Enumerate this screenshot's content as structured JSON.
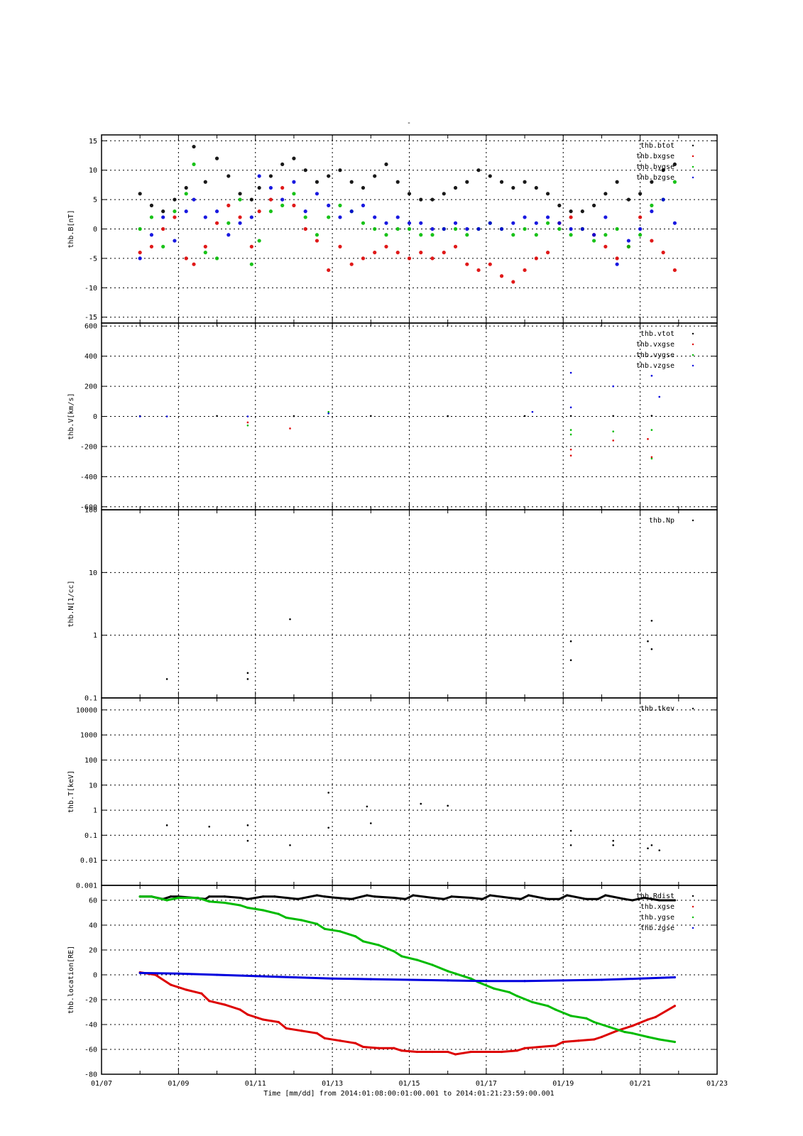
{
  "figure": {
    "title": "-",
    "xlabel": "Time [mm/dd]  from 2014:01:08:00:01:00.001  to  2014:01:21:23:59:00.001"
  },
  "chart_data": [
    {
      "type": "scatter",
      "ylabel": "thb.B[nT]",
      "yscale": "linear",
      "ylim": [
        -16,
        16
      ],
      "yticks": [
        -15,
        -10,
        -5,
        0,
        5,
        10,
        15
      ],
      "ytick_labels": [
        "-15",
        "-10",
        "-5",
        "0",
        "5",
        "10",
        "15"
      ],
      "xlim": [
        "01/07",
        "01/23"
      ],
      "xticks": [
        "01/07",
        "01/09",
        "01/11",
        "01/13",
        "01/15",
        "01/17",
        "01/19",
        "01/21",
        "01/23"
      ],
      "grid": true,
      "legend_position": "top-right",
      "series": [
        {
          "name": "thb.btot",
          "color": "#000000",
          "x": [
            8.0,
            8.3,
            8.6,
            8.9,
            9.2,
            9.4,
            9.7,
            10.0,
            10.3,
            10.6,
            10.9,
            11.1,
            11.4,
            11.7,
            12.0,
            12.3,
            12.6,
            12.9,
            13.2,
            13.5,
            13.8,
            14.1,
            14.4,
            14.7,
            15.0,
            15.3,
            15.6,
            15.9,
            16.2,
            16.5,
            16.8,
            17.1,
            17.4,
            17.7,
            18.0,
            18.3,
            18.6,
            18.9,
            19.2,
            19.5,
            19.8,
            20.1,
            20.4,
            20.7,
            21.0,
            21.3,
            21.6,
            21.9
          ],
          "y": [
            6,
            4,
            3,
            5,
            7,
            14,
            8,
            12,
            9,
            6,
            5,
            7,
            9,
            11,
            12,
            10,
            8,
            9,
            10,
            8,
            7,
            9,
            11,
            8,
            6,
            5,
            5,
            6,
            7,
            8,
            10,
            9,
            8,
            7,
            8,
            7,
            6,
            4,
            3,
            3,
            4,
            6,
            8,
            5,
            6,
            8,
            10,
            11
          ]
        },
        {
          "name": "thb.bxgse",
          "color": "#dd0000",
          "x": [
            8.0,
            8.3,
            8.6,
            8.9,
            9.2,
            9.4,
            9.7,
            10.0,
            10.3,
            10.6,
            10.9,
            11.1,
            11.4,
            11.7,
            12.0,
            12.3,
            12.6,
            12.9,
            13.2,
            13.5,
            13.8,
            14.1,
            14.4,
            14.7,
            15.0,
            15.3,
            15.6,
            15.9,
            16.2,
            16.5,
            16.8,
            17.1,
            17.4,
            17.7,
            18.0,
            18.3,
            18.6,
            18.9,
            19.2,
            19.5,
            19.8,
            20.1,
            20.4,
            20.7,
            21.0,
            21.3,
            21.6,
            21.9
          ],
          "y": [
            -4,
            -3,
            0,
            2,
            -5,
            -6,
            -3,
            1,
            4,
            2,
            -3,
            3,
            5,
            7,
            4,
            0,
            -2,
            -7,
            -3,
            -6,
            -5,
            -4,
            -3,
            -4,
            -5,
            -4,
            -5,
            -4,
            -3,
            -6,
            -7,
            -6,
            -8,
            -9,
            -7,
            -5,
            -4,
            1,
            2,
            0,
            -1,
            -3,
            -5,
            -3,
            2,
            -2,
            -4,
            -7
          ]
        },
        {
          "name": "thb.bygse",
          "color": "#00bb00",
          "x": [
            8.0,
            8.3,
            8.6,
            8.9,
            9.2,
            9.4,
            9.7,
            10.0,
            10.3,
            10.6,
            10.9,
            11.1,
            11.4,
            11.7,
            12.0,
            12.3,
            12.6,
            12.9,
            13.2,
            13.5,
            13.8,
            14.1,
            14.4,
            14.7,
            15.0,
            15.3,
            15.6,
            15.9,
            16.2,
            16.5,
            16.8,
            17.1,
            17.4,
            17.7,
            18.0,
            18.3,
            18.6,
            18.9,
            19.2,
            19.5,
            19.8,
            20.1,
            20.4,
            20.7,
            21.0,
            21.3,
            21.6,
            21.9
          ],
          "y": [
            0,
            2,
            -3,
            3,
            6,
            11,
            -4,
            -5,
            1,
            5,
            -6,
            -2,
            3,
            4,
            6,
            2,
            -1,
            2,
            4,
            3,
            1,
            0,
            -1,
            0,
            0,
            -1,
            -1,
            0,
            0,
            -1,
            0,
            1,
            0,
            -1,
            0,
            -1,
            1,
            0,
            -1,
            0,
            -2,
            -1,
            0,
            -3,
            -1,
            4,
            5,
            8
          ]
        },
        {
          "name": "thb.bzgse",
          "color": "#0000dd",
          "x": [
            8.0,
            8.3,
            8.6,
            8.9,
            9.2,
            9.4,
            9.7,
            10.0,
            10.3,
            10.6,
            10.9,
            11.1,
            11.4,
            11.7,
            12.0,
            12.3,
            12.6,
            12.9,
            13.2,
            13.5,
            13.8,
            14.1,
            14.4,
            14.7,
            15.0,
            15.3,
            15.6,
            15.9,
            16.2,
            16.5,
            16.8,
            17.1,
            17.4,
            17.7,
            18.0,
            18.3,
            18.6,
            18.9,
            19.2,
            19.5,
            19.8,
            20.1,
            20.4,
            20.7,
            21.0,
            21.3,
            21.6,
            21.9
          ],
          "y": [
            -5,
            -1,
            2,
            -2,
            3,
            5,
            2,
            3,
            -1,
            1,
            2,
            9,
            7,
            5,
            8,
            3,
            6,
            4,
            2,
            3,
            4,
            2,
            1,
            2,
            1,
            1,
            0,
            0,
            1,
            0,
            0,
            1,
            0,
            1,
            2,
            1,
            2,
            1,
            0,
            0,
            -1,
            2,
            -6,
            -2,
            0,
            3,
            5,
            1
          ]
        }
      ]
    },
    {
      "type": "scatter",
      "ylabel": "thb.V[km/s]",
      "yscale": "linear",
      "ylim": [
        -620,
        620
      ],
      "yticks": [
        -600,
        -400,
        -200,
        0,
        200,
        400,
        600
      ],
      "ytick_labels": [
        "-600",
        "-400",
        "-200",
        "0",
        "200",
        "400",
        "600"
      ],
      "xlim": [
        "01/07",
        "01/23"
      ],
      "grid": true,
      "legend_position": "top-right",
      "series": [
        {
          "name": "thb.vtot",
          "color": "#000000",
          "x": [
            8.0,
            10.0,
            12.0,
            14.0,
            16.0,
            18.0,
            19.2,
            20.3,
            21.3
          ],
          "y": [
            2,
            3,
            2,
            3,
            2,
            3,
            3,
            3,
            4
          ]
        },
        {
          "name": "thb.vxgse",
          "color": "#dd0000",
          "x": [
            10.8,
            11.9,
            19.2,
            19.2,
            20.3,
            21.2,
            21.3
          ],
          "y": [
            -40,
            -80,
            -220,
            -260,
            -160,
            -150,
            -270
          ]
        },
        {
          "name": "thb.vygse",
          "color": "#00bb00",
          "x": [
            10.8,
            12.9,
            19.2,
            19.2,
            20.3,
            21.3,
            21.3
          ],
          "y": [
            -60,
            30,
            -90,
            -120,
            -100,
            -90,
            -280
          ]
        },
        {
          "name": "thb.vzgse",
          "color": "#0000dd",
          "x": [
            8.0,
            8.7,
            10.8,
            12.9,
            18.2,
            19.2,
            19.2,
            20.3,
            21.3,
            21.5
          ],
          "y": [
            0,
            0,
            0,
            20,
            30,
            290,
            60,
            200,
            270,
            130
          ]
        }
      ]
    },
    {
      "type": "scatter",
      "ylabel": "thb.N[1/cc]",
      "yscale": "log",
      "ylim": [
        0.1,
        100
      ],
      "yticks": [
        0.1,
        1,
        10,
        100
      ],
      "ytick_labels": [
        "0.1",
        "1",
        "10",
        "100"
      ],
      "xlim": [
        "01/07",
        "01/23"
      ],
      "grid": true,
      "legend_position": "top-right",
      "series": [
        {
          "name": "thb.Np",
          "color": "#000000",
          "x": [
            8.7,
            10.8,
            10.8,
            11.9,
            19.2,
            19.2,
            21.2,
            21.3,
            21.3
          ],
          "y": [
            0.2,
            0.25,
            0.2,
            1.8,
            0.8,
            0.4,
            0.8,
            1.7,
            0.6
          ]
        }
      ]
    },
    {
      "type": "scatter",
      "ylabel": "thb.T[keV]",
      "yscale": "log",
      "ylim": [
        0.001,
        30000
      ],
      "yticks": [
        0.001,
        0.01,
        0.1,
        1,
        10,
        100,
        1000,
        10000
      ],
      "ytick_labels": [
        "0.001",
        "0.01",
        "0.1",
        "1",
        "10",
        "100",
        "1000",
        "10000"
      ],
      "xlim": [
        "01/07",
        "01/23"
      ],
      "grid": true,
      "legend_position": "top-right",
      "series": [
        {
          "name": "thb.tkev",
          "color": "#000000",
          "x": [
            8.7,
            9.8,
            10.8,
            10.8,
            11.9,
            12.9,
            12.9,
            13.9,
            14.0,
            15.3,
            16.0,
            19.2,
            19.2,
            20.3,
            20.3,
            21.2,
            21.3,
            21.5
          ],
          "y": [
            0.25,
            0.22,
            0.25,
            0.06,
            0.04,
            5,
            0.2,
            1.4,
            0.3,
            1.8,
            1.5,
            0.15,
            0.04,
            0.04,
            0.06,
            0.03,
            0.04,
            0.025
          ]
        }
      ]
    },
    {
      "type": "line",
      "ylabel": "thb.location[RE]",
      "yscale": "linear",
      "ylim": [
        -80,
        72
      ],
      "yticks": [
        -80,
        -60,
        -40,
        -20,
        0,
        20,
        40,
        60
      ],
      "ytick_labels": [
        "-80",
        "-60",
        "-40",
        "-20",
        "0",
        "20",
        "40",
        "60"
      ],
      "xlim": [
        "01/07",
        "01/23"
      ],
      "xticks": [
        "01/07",
        "01/09",
        "01/11",
        "01/13",
        "01/15",
        "01/17",
        "01/19",
        "01/21",
        "01/23"
      ],
      "xtick_labels": [
        "01/07",
        "01/09",
        "01/11",
        "01/13",
        "01/15",
        "01/17",
        "01/19",
        "01/21",
        "01/23"
      ],
      "grid": true,
      "legend_position": "top-right",
      "series": [
        {
          "name": "thb.Rdist",
          "color": "#000000",
          "x": [
            8.0,
            8.3,
            8.6,
            8.8,
            9.0,
            9.4,
            9.7,
            9.8,
            10.2,
            10.6,
            10.8,
            11.2,
            11.5,
            11.8,
            12.1,
            12.6,
            12.8,
            13.1,
            13.5,
            13.9,
            14.1,
            14.6,
            14.9,
            15.1,
            15.6,
            15.9,
            16.1,
            16.6,
            16.9,
            17.1,
            17.6,
            17.9,
            18.1,
            18.6,
            18.9,
            19.1,
            19.6,
            19.9,
            20.1,
            20.6,
            20.8,
            21.1,
            21.5,
            21.9
          ],
          "y": [
            63,
            63,
            61,
            63,
            63,
            62,
            61,
            63,
            63,
            62,
            61,
            63,
            63,
            62,
            61,
            64,
            63,
            62,
            61,
            64,
            63,
            62,
            61,
            64,
            62,
            61,
            63,
            62,
            61,
            64,
            62,
            61,
            64,
            61,
            61,
            64,
            61,
            61,
            64,
            61,
            60,
            62,
            60,
            60
          ]
        },
        {
          "name": "thb.xgse",
          "color": "#dd0000",
          "x": [
            8.0,
            8.4,
            8.8,
            9.2,
            9.6,
            9.8,
            10.2,
            10.6,
            10.8,
            11.2,
            11.6,
            11.8,
            12.2,
            12.6,
            12.8,
            13.2,
            13.6,
            13.8,
            14.2,
            14.6,
            14.8,
            15.2,
            15.6,
            16.0,
            16.2,
            16.6,
            17.0,
            17.4,
            17.8,
            18.0,
            18.4,
            18.8,
            19.0,
            19.4,
            19.8,
            20.0,
            20.4,
            20.8,
            21.2,
            21.4,
            21.9
          ],
          "y": [
            2,
            0,
            -8,
            -12,
            -15,
            -21,
            -24,
            -28,
            -32,
            -36,
            -38,
            -43,
            -45,
            -47,
            -51,
            -53,
            -55,
            -58,
            -59,
            -59,
            -61,
            -62,
            -62,
            -62,
            -64,
            -62,
            -62,
            -62,
            -61,
            -59,
            -58,
            -57,
            -54,
            -53,
            -52,
            -50,
            -45,
            -41,
            -36,
            -34,
            -25
          ]
        },
        {
          "name": "thb.ygse",
          "color": "#00bb00",
          "x": [
            8.0,
            8.3,
            8.7,
            9.0,
            9.5,
            9.8,
            10.2,
            10.6,
            10.8,
            11.2,
            11.6,
            11.8,
            12.2,
            12.6,
            12.8,
            13.2,
            13.6,
            13.8,
            14.2,
            14.6,
            14.8,
            15.2,
            15.6,
            16.0,
            16.2,
            16.6,
            16.8,
            17.2,
            17.6,
            17.8,
            18.2,
            18.6,
            18.8,
            19.2,
            19.6,
            19.8,
            20.2,
            20.6,
            20.8,
            21.2,
            21.5,
            21.9
          ],
          "y": [
            63,
            63,
            60,
            62,
            62,
            59,
            58,
            56,
            54,
            52,
            49,
            46,
            44,
            41,
            37,
            35,
            31,
            27,
            24,
            19,
            15,
            12,
            8,
            3,
            1,
            -3,
            -6,
            -11,
            -14,
            -17,
            -22,
            -25,
            -28,
            -33,
            -35,
            -38,
            -42,
            -46,
            -47,
            -50,
            -52,
            -54
          ]
        },
        {
          "name": "thb.zgse",
          "color": "#0000dd",
          "x": [
            8.0,
            9.0,
            10.0,
            11.0,
            12.0,
            13.0,
            14.0,
            15.0,
            16.0,
            17.0,
            18.0,
            19.0,
            20.0,
            21.0,
            21.9
          ],
          "y": [
            1.5,
            1,
            0,
            -1,
            -2,
            -3,
            -3.5,
            -4,
            -4.5,
            -5,
            -5,
            -4.5,
            -4,
            -3,
            -2
          ]
        }
      ]
    }
  ]
}
